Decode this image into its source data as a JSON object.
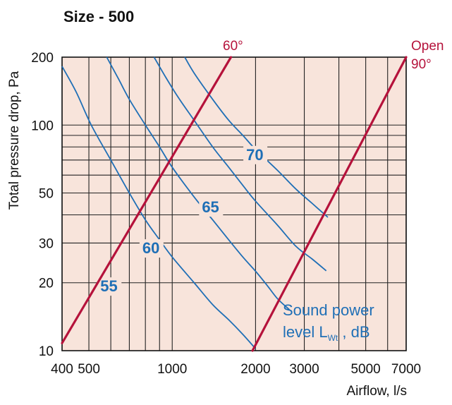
{
  "chart_data": {
    "type": "line",
    "title": "Size - 500",
    "xlabel": "Airflow, l/s",
    "ylabel": "Total pressure drop, Pa",
    "x_scale": "log",
    "y_scale": "log",
    "xlim": [
      400,
      7000
    ],
    "ylim": [
      10,
      200
    ],
    "x_ticks": [
      {
        "value": 400,
        "label": "400"
      },
      {
        "value": 500,
        "label": "500"
      },
      {
        "value": 1000,
        "label": "1000"
      },
      {
        "value": 2000,
        "label": "2000"
      },
      {
        "value": 3000,
        "label": "3000"
      },
      {
        "value": 5000,
        "label": "5000"
      },
      {
        "value": 7000,
        "label": "7000"
      }
    ],
    "y_ticks": [
      {
        "value": 10,
        "label": "10"
      },
      {
        "value": 20,
        "label": "20"
      },
      {
        "value": 30,
        "label": "30"
      },
      {
        "value": 50,
        "label": "50"
      },
      {
        "value": 100,
        "label": "100"
      },
      {
        "value": 200,
        "label": "200"
      }
    ],
    "x_grid": [
      400,
      500,
      600,
      700,
      800,
      900,
      1000,
      2000,
      3000,
      4000,
      5000,
      6000,
      7000
    ],
    "y_grid": [
      10,
      20,
      30,
      40,
      50,
      60,
      70,
      80,
      90,
      100,
      200
    ],
    "grid": true,
    "background_color": "#f8e4db",
    "grid_color": "#222222",
    "damper_lines": {
      "color": "#b5123b",
      "series": [
        {
          "name": "60°",
          "label_lines": [
            "60°"
          ],
          "points": [
            [
              400,
              10.8
            ],
            [
              1630,
              200
            ]
          ]
        },
        {
          "name": "Open 90°",
          "label_lines": [
            "Open",
            "90°"
          ],
          "points": [
            [
              1950,
              10
            ],
            [
              7000,
              200
            ]
          ]
        }
      ]
    },
    "sound_curves": {
      "color": "#1f6fb6",
      "legend": {
        "line1": "Sound power",
        "line2_prefix": "level L",
        "line2_sub": "Wt",
        "line2_suffix": " , dB"
      },
      "series": [
        {
          "name": "55",
          "label": {
            "value": "55",
            "at": [
              550,
              18.3
            ]
          },
          "points": [
            [
              400,
              182
            ],
            [
              450,
              140
            ],
            [
              510,
              100
            ],
            [
              600,
              70
            ],
            [
              700,
              50
            ],
            [
              800,
              38
            ],
            [
              900,
              31
            ],
            [
              1000,
              26
            ],
            [
              1200,
              20
            ],
            [
              1400,
              16
            ],
            [
              1600,
              13.7
            ],
            [
              1800,
              11.8
            ],
            [
              2000,
              10.2
            ]
          ]
        },
        {
          "name": "60",
          "label": {
            "value": "60",
            "at": [
              780,
              27
            ]
          },
          "points": [
            [
              580,
              200
            ],
            [
              640,
              160
            ],
            [
              700,
              130
            ],
            [
              800,
              100
            ],
            [
              900,
              80
            ],
            [
              1000,
              65
            ],
            [
              1200,
              48
            ],
            [
              1400,
              38
            ],
            [
              1600,
              31
            ],
            [
              1800,
              26
            ],
            [
              2000,
              22.5
            ],
            [
              2200,
              19.5
            ],
            [
              2400,
              17
            ],
            [
              2650,
              15.2
            ]
          ]
        },
        {
          "name": "65",
          "label": {
            "value": "65",
            "at": [
              1280,
              41
            ]
          },
          "points": [
            [
              860,
              200
            ],
            [
              950,
              162
            ],
            [
              1050,
              133
            ],
            [
              1200,
              105
            ],
            [
              1400,
              80
            ],
            [
              1600,
              65
            ],
            [
              1800,
              54
            ],
            [
              2000,
              46
            ],
            [
              2400,
              36
            ],
            [
              2800,
              29
            ],
            [
              3200,
              25.5
            ],
            [
              3600,
              22.6
            ]
          ]
        },
        {
          "name": "70",
          "label": {
            "value": "70",
            "at": [
              1850,
              70
            ]
          },
          "points": [
            [
              1110,
              200
            ],
            [
              1200,
              170
            ],
            [
              1400,
              130
            ],
            [
              1600,
              105
            ],
            [
              1800,
              90
            ],
            [
              2000,
              78
            ],
            [
              2400,
              63
            ],
            [
              2800,
              52
            ],
            [
              3200,
              45
            ],
            [
              3650,
              39
            ]
          ]
        }
      ]
    }
  }
}
